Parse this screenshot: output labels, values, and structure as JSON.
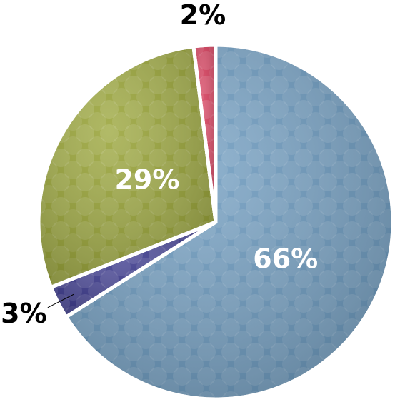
{
  "chart_data": {
    "type": "pie",
    "values": [
      66,
      3,
      29,
      2
    ],
    "value_labels": [
      "66%",
      "3%",
      "29%",
      "2%"
    ],
    "colors": [
      "#6f9cc0",
      "#3d3b8e",
      "#9aa53a",
      "#d8405e"
    ]
  }
}
